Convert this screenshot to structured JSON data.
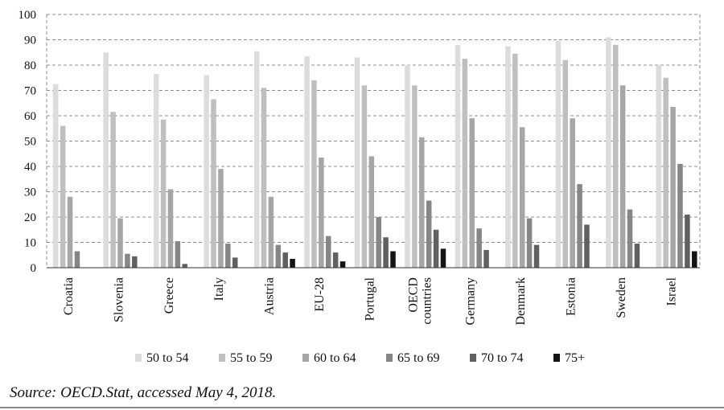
{
  "chart_data": {
    "type": "bar",
    "categories": [
      "Croatia",
      "Slovenia",
      "Greece",
      "Italy",
      "Austria",
      "EU-28",
      "Portugal",
      "OECD countries",
      "Germany",
      "Denmark",
      "Estonia",
      "Sweden",
      "Israel"
    ],
    "series": [
      {
        "name": "50 to 54",
        "color": "#dcdcdc",
        "values": [
          72.5,
          85,
          76.5,
          76,
          85.5,
          83.5,
          83,
          80,
          88,
          87.5,
          89.5,
          91,
          80
        ]
      },
      {
        "name": "55 to 59",
        "color": "#bfbfbf",
        "values": [
          56,
          61.5,
          58.5,
          66.5,
          71,
          74,
          72,
          72,
          82.5,
          84.5,
          82,
          88,
          75
        ]
      },
      {
        "name": "60 to 64",
        "color": "#a6a6a6",
        "values": [
          28,
          19.5,
          31,
          39,
          28,
          43.5,
          44,
          51.5,
          59,
          55.5,
          59,
          72,
          63.5
        ]
      },
      {
        "name": "65 to 69",
        "color": "#868686",
        "values": [
          6.5,
          5.5,
          10.5,
          9.5,
          9,
          12.5,
          20,
          26.5,
          15.5,
          19.5,
          33,
          23,
          41
        ]
      },
      {
        "name": "70 to 74",
        "color": "#606060",
        "values": [
          0,
          4.5,
          1.5,
          4,
          6,
          6,
          12,
          15,
          7,
          9,
          17,
          9.5,
          21
        ]
      },
      {
        "name": "75+",
        "color": "#141414",
        "values": [
          0,
          0,
          0,
          0,
          3.5,
          2.5,
          6.5,
          7.5,
          0,
          0,
          0,
          0,
          6.5
        ]
      }
    ],
    "ylim": [
      0,
      100
    ],
    "yticks": [
      "0",
      "10",
      "20",
      "30",
      "40",
      "50",
      "60",
      "70",
      "80",
      "90",
      "100"
    ],
    "grid": true,
    "legend_position": "bottom",
    "xlabel": "",
    "ylabel": ""
  },
  "source_note": "Source: OECD.Stat, accessed May 4, 2018."
}
